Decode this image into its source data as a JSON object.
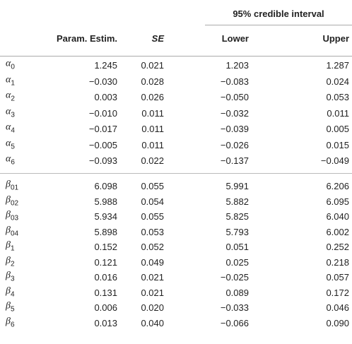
{
  "header": {
    "group": "95% credible interval",
    "columns": [
      "Param. Estim.",
      "SE",
      "Lower",
      "Upper"
    ]
  },
  "groups": [
    {
      "rows": [
        {
          "symbol": "α",
          "sub": "0",
          "cells": [
            "1.245",
            "0.021",
            "1.203",
            "1.287"
          ]
        },
        {
          "symbol": "α",
          "sub": "1",
          "cells": [
            "−0.030",
            "0.028",
            "−0.083",
            "0.024"
          ]
        },
        {
          "symbol": "α",
          "sub": "2",
          "cells": [
            "0.003",
            "0.026",
            "−0.050",
            "0.053"
          ]
        },
        {
          "symbol": "α",
          "sub": "3",
          "cells": [
            "−0.010",
            "0.011",
            "−0.032",
            "0.011"
          ]
        },
        {
          "symbol": "α",
          "sub": "4",
          "cells": [
            "−0.017",
            "0.011",
            "−0.039",
            "0.005"
          ]
        },
        {
          "symbol": "α",
          "sub": "5",
          "cells": [
            "−0.005",
            "0.011",
            "−0.026",
            "0.015"
          ]
        },
        {
          "symbol": "α",
          "sub": "6",
          "cells": [
            "−0.093",
            "0.022",
            "−0.137",
            "−0.049"
          ]
        }
      ]
    },
    {
      "rows": [
        {
          "symbol": "β",
          "sub": "01",
          "cells": [
            "6.098",
            "0.055",
            "5.991",
            "6.206"
          ]
        },
        {
          "symbol": "β",
          "sub": "02",
          "cells": [
            "5.988",
            "0.054",
            "5.882",
            "6.095"
          ]
        },
        {
          "symbol": "β",
          "sub": "03",
          "cells": [
            "5.934",
            "0.055",
            "5.825",
            "6.040"
          ]
        },
        {
          "symbol": "β",
          "sub": "04",
          "cells": [
            "5.898",
            "0.053",
            "5.793",
            "6.002"
          ]
        },
        {
          "symbol": "β",
          "sub": "1",
          "cells": [
            "0.152",
            "0.052",
            "0.051",
            "0.252"
          ]
        },
        {
          "symbol": "β",
          "sub": "2",
          "cells": [
            "0.121",
            "0.049",
            "0.025",
            "0.218"
          ]
        },
        {
          "symbol": "β",
          "sub": "3",
          "cells": [
            "0.016",
            "0.021",
            "−0.025",
            "0.057"
          ]
        },
        {
          "symbol": "β",
          "sub": "4",
          "cells": [
            "0.131",
            "0.021",
            "0.089",
            "0.172"
          ]
        },
        {
          "symbol": "β",
          "sub": "5",
          "cells": [
            "0.006",
            "0.020",
            "−0.033",
            "0.046"
          ]
        },
        {
          "symbol": "β",
          "sub": "6",
          "cells": [
            "0.013",
            "0.040",
            "−0.066",
            "0.090"
          ]
        }
      ]
    }
  ]
}
